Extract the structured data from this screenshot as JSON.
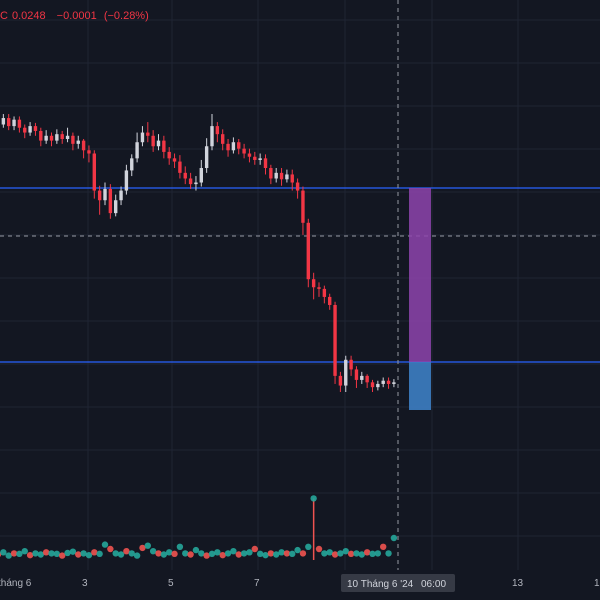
{
  "legend": {
    "close_prefix": "C",
    "close_value": "0.0248",
    "change": "−0.0001",
    "change_pct": "(−0.28%)"
  },
  "colors": {
    "background": "#131722",
    "grid": "#1f2433",
    "up": "#d1d4dc",
    "down": "#f23645",
    "level_line": "#2962ff",
    "target_box": "#8e44ad",
    "stop_box": "#3d7ec3",
    "indicator_up": "#26a69a",
    "indicator_down": "#ef5350",
    "crosshair": "#9598a1"
  },
  "x_axis": {
    "ticks": [
      "tháng 6",
      "3",
      "5",
      "7",
      "13",
      "1"
    ],
    "crosshair_date": "10 Tháng 6 '24",
    "crosshair_time": "06:00"
  },
  "chart_data": {
    "type": "candlestick",
    "price_scale": "visible only, labels cropped",
    "close_last": 0.0248,
    "levels": [
      {
        "name": "upper-level",
        "style": "solid",
        "price_fraction": 0.275
      },
      {
        "name": "lower-level",
        "style": "solid",
        "price_fraction": 0.605
      },
      {
        "name": "crosshair-level",
        "style": "dashed",
        "price_fraction": 0.39
      }
    ],
    "candles": [
      [
        0,
        0.245,
        0.232,
        0.225,
        0.25
      ],
      [
        1,
        0.232,
        0.24,
        0.228,
        0.245
      ],
      [
        2,
        0.24,
        0.23,
        0.225,
        0.245
      ],
      [
        3,
        0.23,
        0.238,
        0.225,
        0.242
      ],
      [
        4,
        0.238,
        0.228,
        0.222,
        0.242
      ],
      [
        5,
        0.228,
        0.222,
        0.215,
        0.232
      ],
      [
        6,
        0.222,
        0.23,
        0.218,
        0.235
      ],
      [
        7,
        0.23,
        0.224,
        0.218,
        0.234
      ],
      [
        8,
        0.224,
        0.212,
        0.205,
        0.228
      ],
      [
        9,
        0.212,
        0.218,
        0.208,
        0.225
      ],
      [
        10,
        0.218,
        0.212,
        0.205,
        0.222
      ],
      [
        11,
        0.212,
        0.22,
        0.208,
        0.226
      ],
      [
        12,
        0.22,
        0.214,
        0.208,
        0.224
      ],
      [
        13,
        0.214,
        0.218,
        0.21,
        0.228
      ],
      [
        14,
        0.218,
        0.208,
        0.2,
        0.222
      ],
      [
        15,
        0.208,
        0.212,
        0.202,
        0.218
      ],
      [
        16,
        0.212,
        0.2,
        0.19,
        0.214
      ],
      [
        17,
        0.2,
        0.196,
        0.185,
        0.206
      ],
      [
        18,
        0.196,
        0.15,
        0.14,
        0.2
      ],
      [
        19,
        0.15,
        0.138,
        0.12,
        0.156
      ],
      [
        20,
        0.138,
        0.152,
        0.132,
        0.16
      ],
      [
        21,
        0.152,
        0.122,
        0.115,
        0.158
      ],
      [
        22,
        0.122,
        0.138,
        0.118,
        0.145
      ],
      [
        23,
        0.138,
        0.15,
        0.132,
        0.155
      ],
      [
        24,
        0.15,
        0.175,
        0.145,
        0.182
      ],
      [
        25,
        0.175,
        0.19,
        0.168,
        0.195
      ],
      [
        26,
        0.19,
        0.21,
        0.185,
        0.222
      ],
      [
        27,
        0.21,
        0.222,
        0.205,
        0.23
      ],
      [
        28,
        0.222,
        0.218,
        0.21,
        0.235
      ],
      [
        29,
        0.218,
        0.205,
        0.198,
        0.225
      ],
      [
        30,
        0.205,
        0.212,
        0.2,
        0.22
      ],
      [
        31,
        0.212,
        0.198,
        0.19,
        0.218
      ],
      [
        32,
        0.198,
        0.19,
        0.182,
        0.204
      ],
      [
        33,
        0.19,
        0.186,
        0.178,
        0.196
      ],
      [
        34,
        0.186,
        0.172,
        0.165,
        0.194
      ],
      [
        35,
        0.172,
        0.165,
        0.158,
        0.18
      ],
      [
        36,
        0.165,
        0.158,
        0.152,
        0.172
      ],
      [
        37,
        0.158,
        0.16,
        0.15,
        0.168
      ],
      [
        38,
        0.16,
        0.178,
        0.155,
        0.188
      ],
      [
        39,
        0.178,
        0.205,
        0.172,
        0.215
      ],
      [
        40,
        0.205,
        0.23,
        0.2,
        0.245
      ],
      [
        41,
        0.23,
        0.22,
        0.21,
        0.235
      ],
      [
        42,
        0.22,
        0.208,
        0.2,
        0.226
      ],
      [
        43,
        0.208,
        0.2,
        0.192,
        0.214
      ],
      [
        44,
        0.2,
        0.21,
        0.196,
        0.216
      ],
      [
        45,
        0.21,
        0.202,
        0.195,
        0.214
      ],
      [
        46,
        0.202,
        0.196,
        0.19,
        0.208
      ],
      [
        47,
        0.196,
        0.192,
        0.185,
        0.202
      ],
      [
        48,
        0.192,
        0.188,
        0.182,
        0.198
      ],
      [
        49,
        0.188,
        0.19,
        0.182,
        0.196
      ],
      [
        50,
        0.19,
        0.178,
        0.17,
        0.195
      ],
      [
        51,
        0.178,
        0.165,
        0.158,
        0.182
      ],
      [
        52,
        0.165,
        0.172,
        0.16,
        0.178
      ],
      [
        53,
        0.172,
        0.164,
        0.156,
        0.178
      ],
      [
        54,
        0.164,
        0.17,
        0.16,
        0.176
      ],
      [
        55,
        0.17,
        0.16,
        0.15,
        0.176
      ],
      [
        56,
        0.16,
        0.15,
        0.14,
        0.165
      ],
      [
        57,
        0.15,
        0.11,
        0.095,
        0.155
      ],
      [
        58,
        0.11,
        0.04,
        0.03,
        0.115
      ],
      [
        59,
        0.04,
        0.03,
        0.015,
        0.048
      ],
      [
        60,
        0.03,
        0.028,
        0.018,
        0.036
      ],
      [
        61,
        0.028,
        0.018,
        0.01,
        0.032
      ],
      [
        62,
        0.018,
        0.008,
        0.002,
        0.022
      ],
      [
        63,
        0.008,
        -0.08,
        -0.09,
        0.012
      ],
      [
        64,
        -0.08,
        -0.092,
        -0.1,
        -0.075
      ],
      [
        65,
        -0.092,
        -0.06,
        -0.1,
        -0.055
      ],
      [
        66,
        -0.06,
        -0.072,
        -0.08,
        -0.055
      ],
      [
        67,
        -0.072,
        -0.085,
        -0.095,
        -0.068
      ],
      [
        68,
        -0.085,
        -0.08,
        -0.09,
        -0.075
      ],
      [
        69,
        -0.08,
        -0.088,
        -0.095,
        -0.078
      ],
      [
        70,
        -0.088,
        -0.094,
        -0.1,
        -0.085
      ],
      [
        71,
        -0.094,
        -0.09,
        -0.098,
        -0.086
      ],
      [
        72,
        -0.09,
        -0.086,
        -0.094,
        -0.082
      ],
      [
        73,
        -0.086,
        -0.09,
        -0.096,
        -0.082
      ],
      [
        74,
        -0.09,
        -0.088,
        -0.094,
        -0.084
      ]
    ],
    "indicator": {
      "type": "dot-series",
      "values": [
        0.25,
        0.35,
        0.2,
        0.3,
        0.28,
        0.4,
        0.22,
        0.3,
        0.25,
        0.35,
        0.3,
        0.28,
        0.2,
        0.32,
        0.38,
        0.25,
        0.3,
        0.22,
        0.35,
        0.28,
        0.7,
        0.5,
        0.3,
        0.25,
        0.4,
        0.3,
        0.2,
        0.55,
        0.65,
        0.4,
        0.3,
        0.25,
        0.35,
        0.28,
        0.6,
        0.3,
        0.25,
        0.45,
        0.3,
        0.2,
        0.28,
        0.35,
        0.22,
        0.3,
        0.4,
        0.25,
        0.3,
        0.35,
        0.5,
        0.28,
        0.22,
        0.3,
        0.25,
        0.35,
        0.3,
        0.28,
        0.45,
        0.3,
        0.6,
        2.8,
        0.5,
        0.3,
        0.35,
        0.25,
        0.3,
        0.4,
        0.28,
        0.3,
        0.25,
        0.35,
        0.28,
        0.3,
        0.6,
        0.3,
        1.0
      ]
    }
  }
}
